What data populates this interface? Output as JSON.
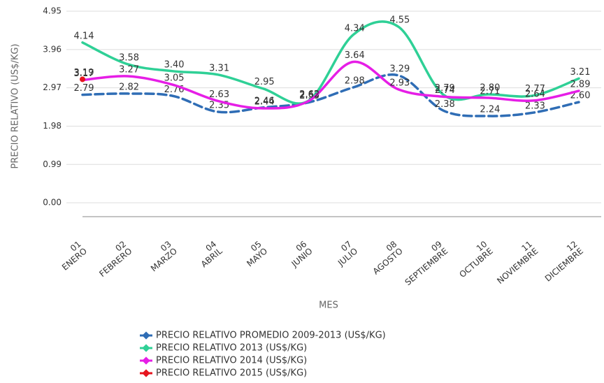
{
  "chart_data": {
    "type": "line",
    "xlabel": "MES",
    "ylabel": "PRECIO RELATIVO (US$/KG)",
    "categories": [
      "01 ENERO",
      "02 FEBRERO",
      "03 MARZO",
      "04 ABRIL",
      "05 MAYO",
      "06 JUNIO",
      "07 JULIO",
      "08 AGOSTO",
      "09 SEPTIEMBRE",
      "10 OCTUBRE",
      "11 NOVIEMBRE",
      "12 DICIEMBRE"
    ],
    "ylim": [
      -0.36,
      4.95
    ],
    "yticks": [
      {
        "value": 0,
        "label": "0.00"
      },
      0.99,
      1.98,
      2.97,
      3.96,
      4.95
    ],
    "grid": true,
    "legend": "bottom",
    "series": [
      {
        "name": "PRECIO RELATIVO PROMEDIO 2009-2013 (US$/KG)",
        "color": "#2f6db5",
        "dashed": true,
        "values": [
          2.79,
          2.82,
          2.76,
          2.35,
          2.46,
          2.59,
          2.98,
          3.29,
          2.38,
          2.24,
          2.33,
          2.6
        ],
        "value_labels": [
          "2.79",
          "2.82",
          "2.76",
          "2.35",
          "2.46",
          "2.59",
          "2.98",
          "3.29",
          "2.38",
          "2.24",
          "2.33",
          "2.60"
        ]
      },
      {
        "name": "PRECIO RELATIVO 2013 (US$/KG)",
        "color": "#2fd096",
        "values": [
          4.14,
          3.58,
          3.4,
          3.31,
          2.95,
          2.63,
          4.34,
          4.55,
          2.79,
          2.8,
          2.77,
          3.21
        ],
        "value_labels": [
          "4.14",
          "3.58",
          "3.40",
          "3.31",
          "2.95",
          "2.63",
          "4.34",
          "4.55",
          "2.79",
          "2.80",
          "2.77",
          "3.21"
        ]
      },
      {
        "name": "PRECIO RELATIVO 2014 (US$/KG)",
        "color": "#e61ee6",
        "values": [
          3.17,
          3.27,
          3.05,
          2.63,
          2.44,
          2.62,
          3.64,
          2.93,
          2.74,
          2.71,
          2.64,
          2.89
        ],
        "value_labels": [
          "3.17",
          "3.27",
          "3.05",
          "2.63",
          "2.44",
          "2.62",
          "3.64",
          "2.93",
          "2.74",
          "2.71",
          "2.64",
          "2.89"
        ]
      },
      {
        "name": "PRECIO RELATIVO 2015 (US$/KG)",
        "color": "#e6141e",
        "values": [
          3.19,
          null,
          null,
          null,
          null,
          null,
          null,
          null,
          null,
          null,
          null,
          null
        ],
        "value_labels": [
          "3.19",
          null,
          null,
          null,
          null,
          null,
          null,
          null,
          null,
          null,
          null,
          null
        ]
      }
    ]
  }
}
